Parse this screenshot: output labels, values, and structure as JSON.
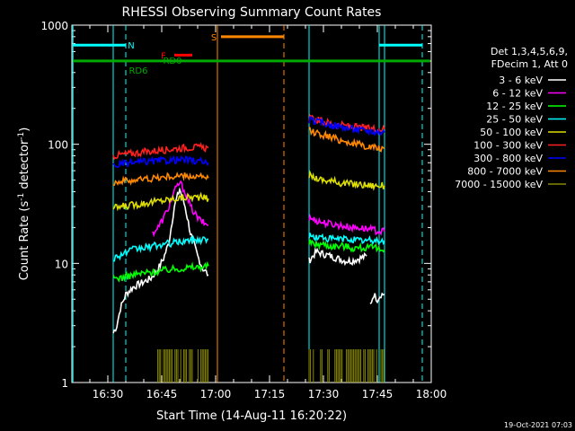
{
  "chart_data": {
    "type": "line",
    "title": "RHESSI Observing Summary Count Rates",
    "xlabel": "Start Time (14-Aug-11 16:20:22)",
    "ylabel_main": "Count Rate (s",
    "ylabel_sup1": "-1",
    "ylabel_mid": " detector",
    "ylabel_sup2": "-1",
    "ylabel_end": ")",
    "yscale": "log",
    "ylim": [
      1,
      1000
    ],
    "xlim_minutes": [
      0,
      100
    ],
    "x_ticks": [
      {
        "minute": 10,
        "label": "16:30"
      },
      {
        "minute": 25,
        "label": "16:45"
      },
      {
        "minute": 40,
        "label": "17:00"
      },
      {
        "minute": 55,
        "label": "17:15"
      },
      {
        "minute": 70,
        "label": "17:30"
      },
      {
        "minute": 85,
        "label": "17:45"
      },
      {
        "minute": 100,
        "label": "18:00"
      }
    ],
    "y_ticks": [
      {
        "value": 1,
        "label": "1"
      },
      {
        "value": 10,
        "label": "10"
      },
      {
        "value": 100,
        "label": "100"
      },
      {
        "value": 1000,
        "label": "1000"
      }
    ],
    "legend_header": [
      "Det 1,3,4,5,6,9,",
      "FDecim 1, Att 0"
    ],
    "legend_position": "right",
    "grid": false,
    "timestamp": "19-Oct-2021 07:03",
    "series": [
      {
        "name": "3 - 6 keV",
        "color": "#ffffff",
        "segments": [
          {
            "x": [
              11.5,
              12.5,
              13.5,
              15,
              17,
              20,
              22,
              24,
              25.5,
              27,
              28.5,
              30,
              31.5,
              33,
              35,
              36.5,
              38
            ],
            "y": [
              2.6,
              3.0,
              4.2,
              5.5,
              6.3,
              7.0,
              7.5,
              9.0,
              11.0,
              15.0,
              30.0,
              42.0,
              30.0,
              18.0,
              11.5,
              9.0,
              8.0
            ]
          },
          {
            "x": [
              66,
              68,
              70,
              72,
              74,
              76,
              78,
              80,
              82
            ],
            "y": [
              10.5,
              12.5,
              12.0,
              11.5,
              11.0,
              10.5,
              10.5,
              11.0,
              11.5
            ]
          },
          {
            "x": [
              83,
              84,
              85,
              86,
              87
            ],
            "y": [
              4.5,
              5.5,
              5.0,
              5.5,
              5.5
            ]
          }
        ]
      },
      {
        "name": "6 - 12 keV",
        "color": "#ff00ff",
        "segments": [
          {
            "x": [
              22.5,
              24,
              25.5,
              27,
              28.5,
              30,
              31.5,
              33,
              35,
              36.5,
              38
            ],
            "y": [
              18.0,
              20.0,
              24.0,
              30.0,
              40.0,
              48.0,
              40.0,
              30.0,
              24.0,
              22.0,
              21.0
            ]
          },
          {
            "x": [
              66,
              68,
              70,
              72,
              74,
              76,
              78,
              80,
              82,
              84,
              86,
              87
            ],
            "y": [
              24.0,
              23.0,
              22.0,
              21.5,
              21.0,
              20.5,
              20.0,
              20.0,
              19.5,
              19.0,
              18.5,
              18.5
            ]
          }
        ]
      },
      {
        "name": "12 - 25 keV",
        "color": "#00ff00",
        "segments": [
          {
            "x": [
              11.5,
              14,
              17,
              20,
              23,
              26,
              29,
              32,
              35,
              38
            ],
            "y": [
              7.5,
              7.6,
              8.0,
              8.3,
              8.5,
              8.8,
              9.0,
              9.2,
              9.3,
              9.5
            ]
          },
          {
            "x": [
              66,
              68,
              70,
              72,
              74,
              76,
              78,
              80,
              82,
              84,
              86,
              87
            ],
            "y": [
              15.0,
              14.5,
              14.5,
              14.0,
              14.0,
              14.0,
              13.5,
              13.5,
              13.5,
              13.5,
              13.0,
              13.0
            ]
          }
        ]
      },
      {
        "name": "25 - 50 keV",
        "color": "#00ffff",
        "segments": [
          {
            "x": [
              11.5,
              14,
              17,
              20,
              23,
              26,
              29,
              32,
              35,
              38
            ],
            "y": [
              11.0,
              12.0,
              13.0,
              13.5,
              14.0,
              14.5,
              15.0,
              15.5,
              15.8,
              16.0
            ]
          },
          {
            "x": [
              66,
              68,
              70,
              72,
              74,
              76,
              78,
              80,
              82,
              84,
              86,
              87
            ],
            "y": [
              17.0,
              16.5,
              16.5,
              16.0,
              16.0,
              16.0,
              16.0,
              15.5,
              15.5,
              15.5,
              15.5,
              15.5
            ]
          }
        ]
      },
      {
        "name": "50 - 100 keV",
        "color": "#dddd00",
        "segments": [
          {
            "x": [
              11.5,
              14,
              17,
              20,
              23,
              26,
              29,
              32,
              35,
              38
            ],
            "y": [
              29.0,
              30.0,
              31.0,
              32.0,
              33.0,
              34.0,
              35.0,
              36.0,
              36.0,
              35.0
            ]
          },
          {
            "x": [
              66,
              68,
              70,
              72,
              74,
              76,
              78,
              80,
              82,
              84,
              86,
              87
            ],
            "y": [
              55.0,
              52.0,
              50.0,
              49.0,
              48.0,
              47.0,
              46.5,
              46.0,
              45.5,
              45.0,
              45.0,
              45.0
            ]
          }
        ]
      },
      {
        "name": "100 - 300 keV",
        "color": "#ff2020",
        "segments": [
          {
            "x": [
              11.5,
              14,
              17,
              20,
              23,
              26,
              29,
              32,
              35,
              38
            ],
            "y": [
              80.0,
              82.0,
              84.0,
              86.0,
              88.0,
              90.0,
              92.0,
              94.0,
              94.0,
              93.0
            ]
          },
          {
            "x": [
              66,
              68,
              70,
              72,
              74,
              76,
              78,
              80,
              82,
              84,
              86,
              87
            ],
            "y": [
              165.0,
              160.0,
              155.0,
              150.0,
              146.0,
              143.0,
              140.0,
              138.0,
              136.0,
              135.0,
              134.0,
              134.0
            ]
          }
        ]
      },
      {
        "name": "300 - 800 keV",
        "color": "#0000ff",
        "segments": [
          {
            "x": [
              11.5,
              14,
              17,
              20,
              23,
              26,
              29,
              32,
              35,
              38
            ],
            "y": [
              66.0,
              68.0,
              70.0,
              71.0,
              72.0,
              73.0,
              74.0,
              74.0,
              72.0,
              70.0
            ]
          },
          {
            "x": [
              66,
              68,
              70,
              72,
              74,
              76,
              78,
              80,
              82,
              84,
              86,
              87
            ],
            "y": [
              160.0,
              155.0,
              150.0,
              146.0,
              142.0,
              138.0,
              135.0,
              132.0,
              130.0,
              128.0,
              126.0,
              126.0
            ]
          }
        ]
      },
      {
        "name": "800 - 7000 keV",
        "color": "#ff8800",
        "segments": [
          {
            "x": [
              11.5,
              14,
              17,
              20,
              23,
              26,
              29,
              32,
              35,
              38
            ],
            "y": [
              48.0,
              49.0,
              50.0,
              51.0,
              52.0,
              53.0,
              54.0,
              54.0,
              53.0,
              52.0
            ]
          },
          {
            "x": [
              66,
              68,
              70,
              72,
              74,
              76,
              78,
              80,
              82,
              84,
              86,
              87
            ],
            "y": [
              130.0,
              125.0,
              120.0,
              115.0,
              110.0,
              106.0,
              102.0,
              99.0,
              96.0,
              94.0,
              92.0,
              92.0
            ]
          }
        ]
      },
      {
        "name": "7000 - 15000 keV",
        "color": "#888800",
        "segments": [
          {
            "x": [
              23.5,
              38
            ],
            "y": [
              1.9,
              1.9
            ]
          },
          {
            "x": [
              66,
              87
            ],
            "y": [
              1.9,
              1.9
            ]
          }
        ]
      }
    ],
    "vertical_lines": [
      {
        "minute": 0.3,
        "color": "#00ffff",
        "style": "solid"
      },
      {
        "minute": 11.5,
        "color": "#00ffff",
        "style": "solid"
      },
      {
        "minute": 15,
        "color": "#00ffff",
        "style": "dashed"
      },
      {
        "minute": 40.5,
        "color": "#ff8800",
        "style": "solid"
      },
      {
        "minute": 59,
        "color": "#ff8800",
        "style": "dashed"
      },
      {
        "minute": 66,
        "color": "#00ffff",
        "style": "solid"
      },
      {
        "minute": 87,
        "color": "#00ffff",
        "style": "solid"
      },
      {
        "minute": 85.5,
        "color": "#00ffff",
        "style": "solid"
      },
      {
        "minute": 97.5,
        "color": "#00ffff",
        "style": "dashed"
      }
    ],
    "horizontal_bars": [
      {
        "x": [
          0.3,
          15
        ],
        "y": 680,
        "color": "#00ffff"
      },
      {
        "x": [
          85.5,
          97.5
        ],
        "y": 680,
        "color": "#00ffff"
      },
      {
        "x": [
          41.5,
          59
        ],
        "y": 800,
        "color": "#ff8800"
      },
      {
        "x": [
          28.5,
          33.5
        ],
        "y": 560,
        "color": "#ff0000"
      },
      {
        "x": [
          0.3,
          99.7
        ],
        "y": 500,
        "color": "#00aa00"
      }
    ],
    "annotations": [
      {
        "text": "N",
        "minute": 16.5,
        "value": 680,
        "color": "#00ffff"
      },
      {
        "text": "S",
        "minute": 39.5,
        "value": 800,
        "color": "#ff8800"
      },
      {
        "text": "F",
        "minute": 25.5,
        "value": 560,
        "color": "#ff0000"
      },
      {
        "text": "RD0",
        "minute": 28,
        "value": 510,
        "color": "#00aa00"
      },
      {
        "text": "RD6",
        "minute": 18.5,
        "value": 420,
        "color": "#00aa00"
      }
    ]
  }
}
